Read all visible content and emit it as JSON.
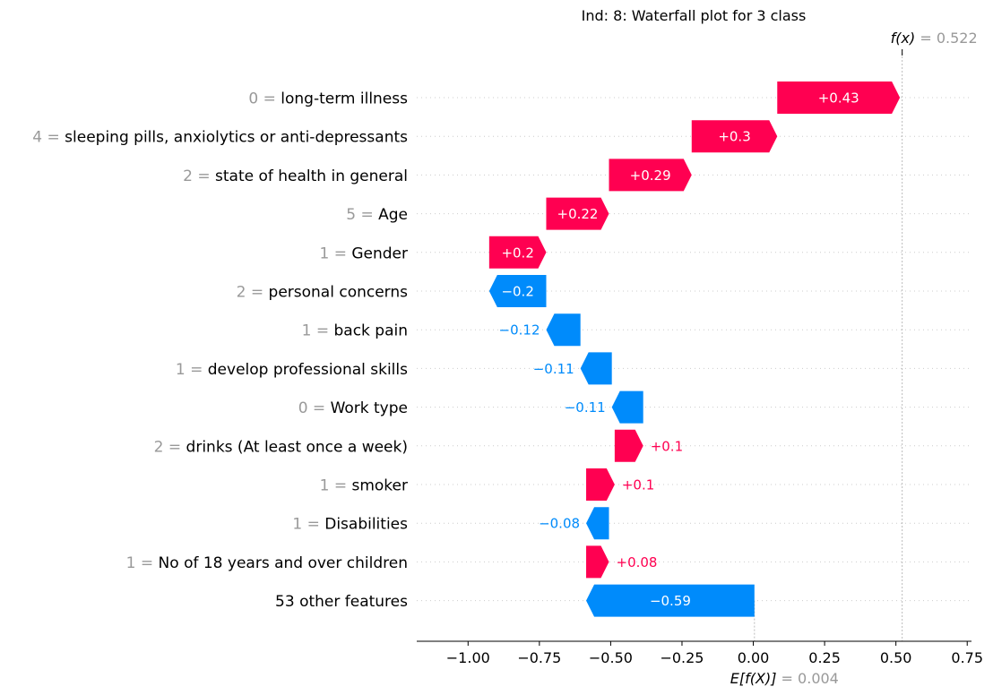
{
  "chart_data": {
    "type": "waterfall",
    "title": "Ind: 8: Waterfall plot for 3 class",
    "base_value": 0.004,
    "base_label_text": "E[f(X)]",
    "base_value_text": "= 0.004",
    "output_value": 0.522,
    "output_label_text": "f(x)",
    "output_value_text": "= 0.522",
    "xlim": [
      -1.18,
      0.765
    ],
    "xticks": [
      -1.0,
      -0.75,
      -0.5,
      -0.25,
      0.0,
      0.25,
      0.5,
      0.75
    ],
    "xtick_labels": [
      "−1.00",
      "−0.75",
      "−0.50",
      "−0.25",
      "0.00",
      "0.25",
      "0.50",
      "0.75"
    ],
    "colors": {
      "positive": "#ff0051",
      "negative": "#008bfb",
      "feature_value": "#999999",
      "grid": "#cccccc"
    },
    "features": [
      {
        "value": "0 =",
        "name": "long-term illness",
        "contribution": 0.43,
        "label": "+0.43"
      },
      {
        "value": "4 =",
        "name": "sleeping pills, anxiolytics or anti-depressants",
        "contribution": 0.3,
        "label": "+0.3"
      },
      {
        "value": "2 =",
        "name": "state of health in general",
        "contribution": 0.29,
        "label": "+0.29"
      },
      {
        "value": "5 =",
        "name": "Age",
        "contribution": 0.22,
        "label": "+0.22"
      },
      {
        "value": "1 =",
        "name": "Gender",
        "contribution": 0.2,
        "label": "+0.2"
      },
      {
        "value": "2 =",
        "name": "personal concerns",
        "contribution": -0.2,
        "label": "−0.2"
      },
      {
        "value": "1 =",
        "name": "back pain",
        "contribution": -0.12,
        "label": "−0.12"
      },
      {
        "value": "1 =",
        "name": "develop professional skills",
        "contribution": -0.11,
        "label": "−0.11"
      },
      {
        "value": "0 =",
        "name": "Work type",
        "contribution": -0.11,
        "label": "−0.11"
      },
      {
        "value": "2 =",
        "name": "drinks (At least once a week)",
        "contribution": 0.1,
        "label": "+0.1"
      },
      {
        "value": "1 =",
        "name": "smoker",
        "contribution": 0.1,
        "label": "+0.1"
      },
      {
        "value": "1 =",
        "name": "Disabilities",
        "contribution": -0.08,
        "label": "−0.08"
      },
      {
        "value": "1 =",
        "name": "No of 18 years and over children",
        "contribution": 0.08,
        "label": "+0.08"
      },
      {
        "value": "",
        "name": "53 other features",
        "contribution": -0.59,
        "label": "−0.59"
      }
    ]
  }
}
